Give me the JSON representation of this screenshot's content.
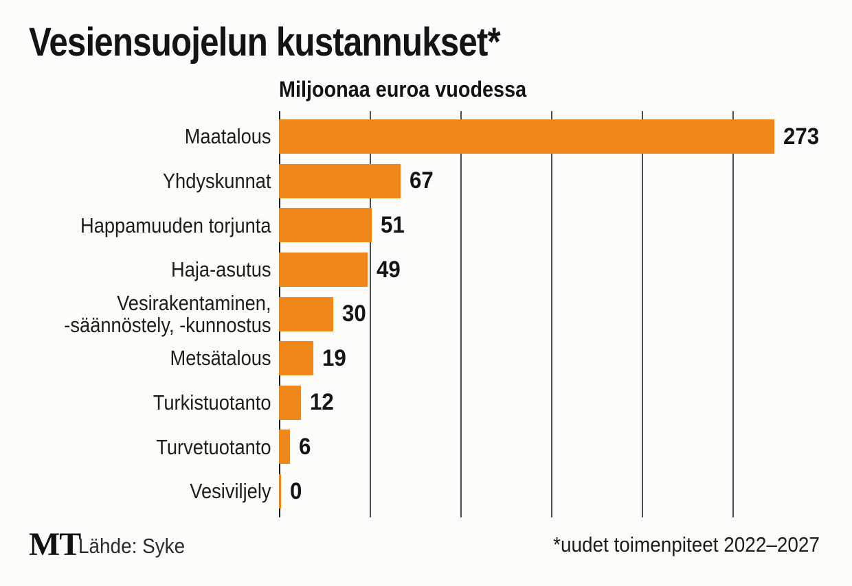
{
  "title": "Vesiensuojelun kustannukset*",
  "subtitle": "Miljoonaa euroa vuodessa",
  "footer": {
    "logo": "MT",
    "source": "Lähde: Syke",
    "footnote": "*uudet toimenpiteet 2022–2027"
  },
  "colors": {
    "bar": "#f0871a",
    "grid": "#4d4d4d",
    "axis": "#1a1a1a",
    "text": "#141414",
    "background": "#fcfcfa"
  },
  "chart_data": {
    "type": "bar",
    "orientation": "horizontal",
    "title": "Vesiensuojelun kustannukset*",
    "subtitle": "Miljoonaa euroa vuodessa",
    "categories": [
      "Maatalous",
      "Yhdyskunnat",
      "Happamuuden torjunta",
      "Haja-asutus",
      "Vesirakentaminen,\n-säännöstely, -kunnostus",
      "Metsätalous",
      "Turkistuotanto",
      "Turvetuotanto",
      "Vesiviljely"
    ],
    "values": [
      273,
      67,
      51,
      49,
      30,
      19,
      12,
      6,
      0
    ],
    "xlabel": "",
    "ylabel": "",
    "xlim": [
      0,
      280
    ],
    "xticks": [
      0,
      50,
      100,
      150,
      200,
      250
    ],
    "grid": true,
    "value_labels": true,
    "legend": false
  }
}
